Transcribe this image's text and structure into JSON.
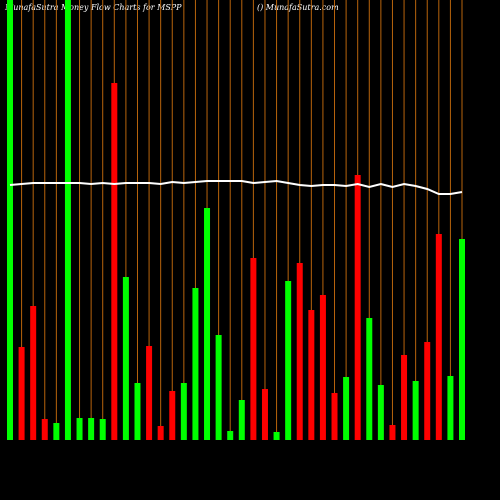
{
  "chart_data": {
    "type": "bar",
    "title": "MunafaSutra  Money Flow  Charts for MSPP",
    "subtitle": "() MunafaSutra.com",
    "categories": [
      null,
      null,
      null,
      null,
      null,
      null,
      null,
      null,
      null,
      null,
      null,
      null,
      null,
      null,
      null,
      null,
      null,
      null,
      null,
      null,
      null,
      null,
      null,
      null,
      null,
      null,
      null,
      null,
      null,
      null,
      null,
      null,
      null,
      null,
      null,
      null,
      null,
      null,
      null,
      null
    ],
    "values": [
      440,
      93,
      134,
      21,
      17,
      440,
      22,
      22,
      21,
      357,
      163,
      57,
      94,
      14,
      49,
      57,
      152,
      232,
      105,
      9,
      40,
      182,
      51,
      8,
      159,
      177,
      130,
      145,
      47,
      63,
      265,
      122,
      55,
      15,
      85,
      59,
      98,
      206,
      64,
      201
    ],
    "bar_colors": [
      "#00ff00",
      "#ff0000",
      "#ff0000",
      "#ff0000",
      "#00ff00",
      "#00ff00",
      "#00ff00",
      "#00ff00",
      "#00ff00",
      "#ff0000",
      "#00ff00",
      "#00ff00",
      "#ff0000",
      "#ff0000",
      "#ff0000",
      "#00ff00",
      "#00ff00",
      "#00ff00",
      "#00ff00",
      "#00ff00",
      "#00ff00",
      "#ff0000",
      "#ff0000",
      "#00ff00",
      "#00ff00",
      "#ff0000",
      "#ff0000",
      "#ff0000",
      "#ff0000",
      "#00ff00",
      "#ff0000",
      "#00ff00",
      "#00ff00",
      "#ff0000",
      "#ff0000",
      "#00ff00",
      "#ff0000",
      "#ff0000",
      "#00ff00",
      "#00ff00"
    ],
    "line_values": [
      255,
      256,
      257,
      257,
      257,
      257,
      257,
      256,
      257,
      256,
      257,
      257,
      257,
      256,
      258,
      257,
      258,
      259,
      259,
      259,
      259,
      257,
      258,
      259,
      257,
      255,
      254,
      255,
      255,
      254,
      256,
      253,
      256,
      253,
      256,
      254,
      251,
      246,
      246,
      248
    ],
    "line_color": "#ffffff",
    "grid_color": "#b8640c",
    "ylim": [
      0,
      440
    ]
  }
}
